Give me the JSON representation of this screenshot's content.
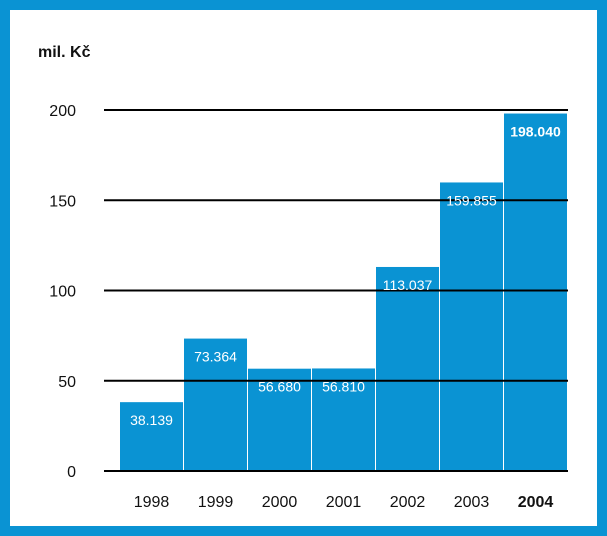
{
  "chart_data": {
    "type": "bar",
    "title": "",
    "ylabel": "mil. Kč",
    "xlabel": "",
    "categories": [
      "1998",
      "1999",
      "2000",
      "2001",
      "2002",
      "2003",
      "2004"
    ],
    "values": [
      38.139,
      73.364,
      56.68,
      56.81,
      113.037,
      159.855,
      198.04
    ],
    "value_labels": [
      "38.139",
      "73.364",
      "56.680",
      "56.810",
      "113.037",
      "159.855",
      "198.040"
    ],
    "highlight_category": "2004",
    "ylim": [
      0,
      200
    ],
    "yticks": [
      "0",
      "50",
      "100",
      "150",
      "200"
    ],
    "grid": true,
    "bar_color": "#0a93d3",
    "frame_color": "#0a93d3",
    "grid_color": "#000000"
  }
}
